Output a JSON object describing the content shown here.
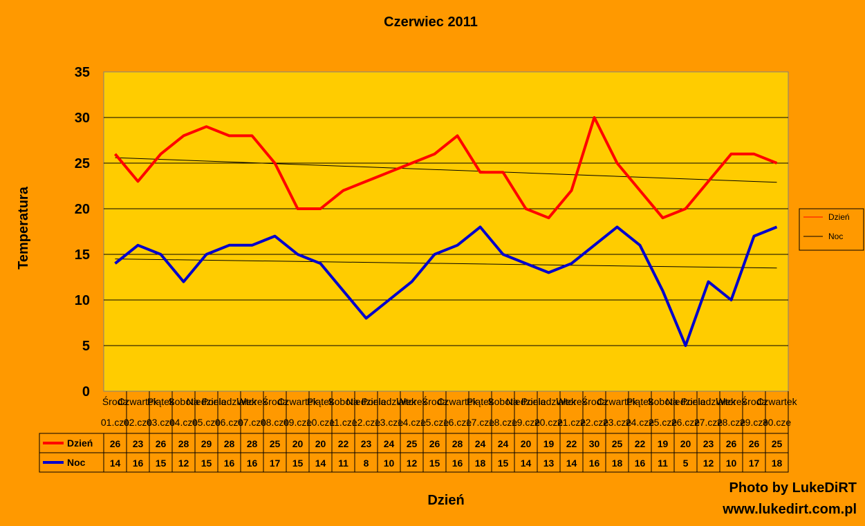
{
  "chart_data": {
    "type": "line",
    "title": "Czerwiec 2011",
    "xlabel": "Dzień",
    "ylabel": "Temperatura",
    "ylim": [
      0,
      35
    ],
    "yticks": [
      0,
      5,
      10,
      15,
      20,
      25,
      30,
      35
    ],
    "grid": true,
    "legend_position": "right",
    "plot_background": "#ffcc00",
    "page_background": "#ff9900",
    "weekdays": [
      "Środa",
      "Czwartek",
      "Piątek",
      "Sobota",
      "Niedziela",
      "Poniedziałek",
      "Wtorek",
      "Środa",
      "Czwartek",
      "Piątek",
      "Sobota",
      "Niedziela",
      "Poniedziałek",
      "Wtorek",
      "Środa",
      "Czwartek",
      "Piątek",
      "Sobota",
      "Niedziela",
      "Poniedziałek",
      "Wtorek",
      "Środa",
      "Czwartek",
      "Piątek",
      "Sobota",
      "Niedziela",
      "Poniedziałek",
      "Wtorek",
      "Środa",
      "Czwartek"
    ],
    "categories": [
      "01.cze",
      "02.cze",
      "03.cze",
      "04.cze",
      "05.cze",
      "06.cze",
      "07.cze",
      "08.cze",
      "09.cze",
      "10.cze",
      "11.cze",
      "12.cze",
      "13.cze",
      "14.cze",
      "15.cze",
      "16.cze",
      "17.cze",
      "18.cze",
      "19.cze",
      "20.cze",
      "21.cze",
      "22.cze",
      "23.cze",
      "24.cze",
      "25.cze",
      "26.cze",
      "27.cze",
      "28.cze",
      "29.cze",
      "30.cze"
    ],
    "series": [
      {
        "name": "Dzień",
        "color": "#ff0000",
        "values": [
          26,
          23,
          26,
          28,
          29,
          28,
          28,
          25,
          20,
          20,
          22,
          23,
          24,
          25,
          26,
          28,
          24,
          24,
          20,
          19,
          22,
          30,
          25,
          22,
          19,
          20,
          23,
          26,
          26,
          25
        ]
      },
      {
        "name": "Noc",
        "color": "#0000cc",
        "values": [
          14,
          16,
          15,
          12,
          15,
          16,
          16,
          17,
          15,
          14,
          11,
          8,
          10,
          12,
          15,
          16,
          18,
          15,
          14,
          13,
          14,
          16,
          18,
          16,
          11,
          5,
          12,
          10,
          17,
          18
        ]
      }
    ],
    "trendlines": [
      {
        "series": "Dzień",
        "color": "#000000",
        "start": 25.6,
        "end": 22.9
      },
      {
        "series": "Noc",
        "color": "#000000",
        "start": 14.5,
        "end": 13.5
      }
    ],
    "legend": [
      {
        "label": "Dzień",
        "color": "#ff0000"
      },
      {
        "label": "Noc",
        "color": "#000000"
      }
    ]
  },
  "watermark": {
    "line1": "Photo by LukeDiRT",
    "line2": "www.lukedirt.com.pl"
  }
}
